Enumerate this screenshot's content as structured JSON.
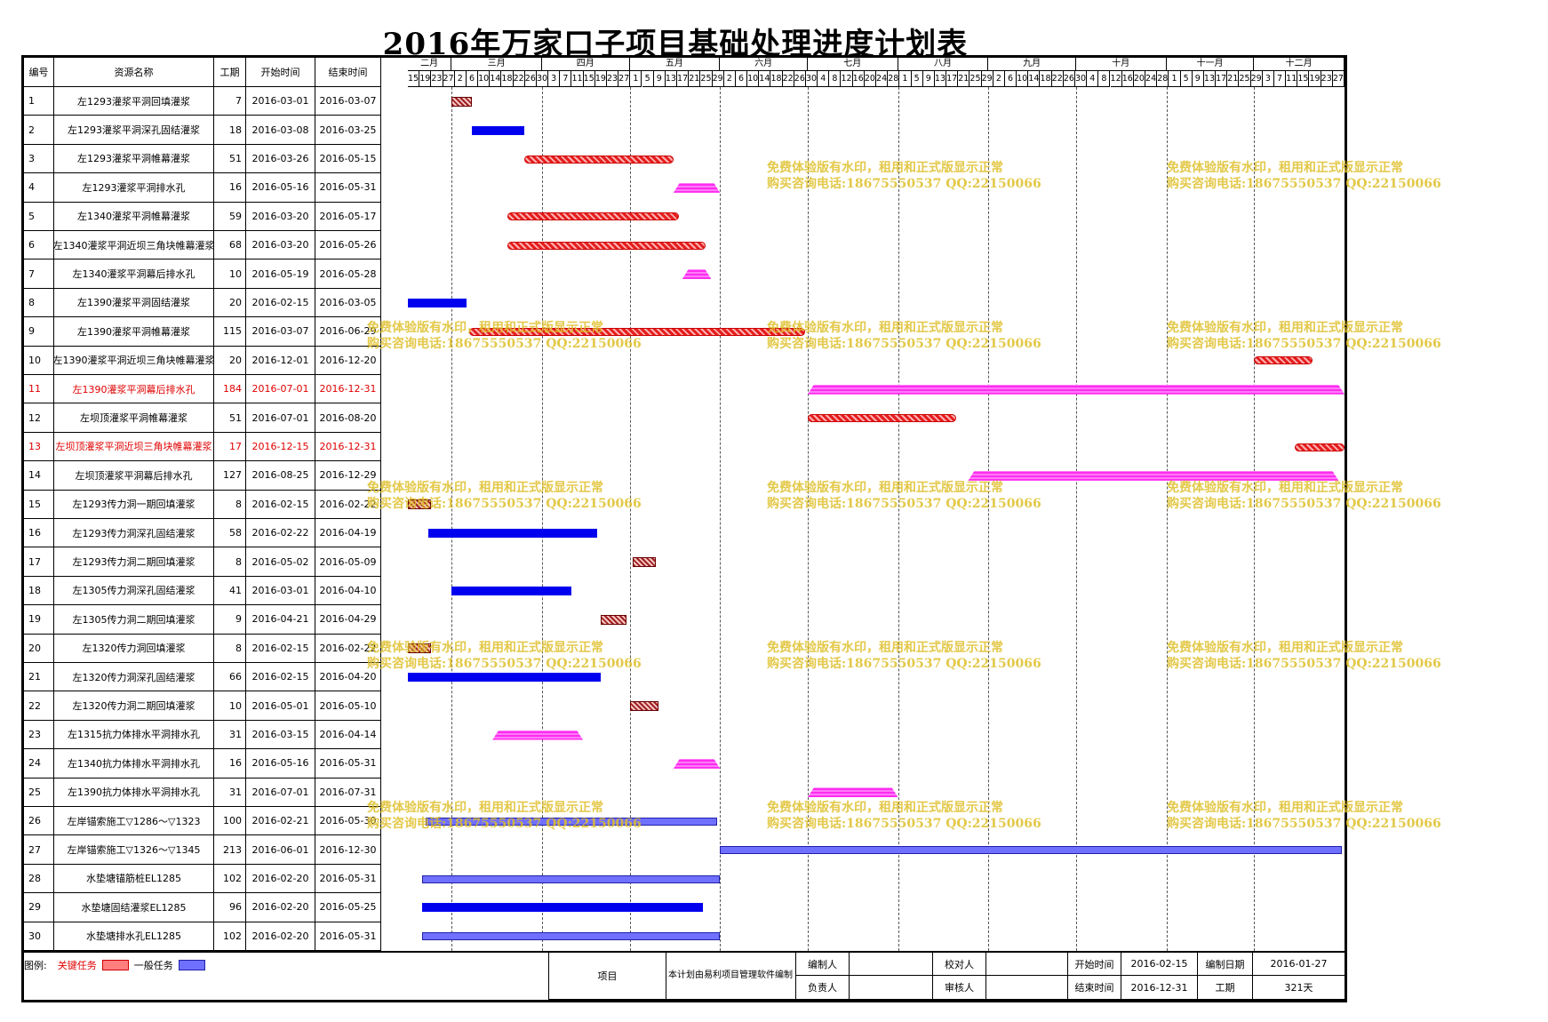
{
  "title": "2016年万家口子项目基础处理进度计划表",
  "headers": {
    "id": "编号",
    "name": "资源名称",
    "dur": "工期",
    "start": "开始时间",
    "end": "结束时间"
  },
  "months": [
    "二月",
    "三月",
    "四月",
    "五月",
    "六月",
    "七月",
    "八月",
    "九月",
    "十月",
    "十一月",
    "十二月"
  ],
  "day_labels": [
    "15",
    "19",
    "23",
    "27",
    "2",
    "6",
    "10",
    "14",
    "18",
    "22",
    "26",
    "30",
    "3",
    "7",
    "11",
    "15",
    "19",
    "23",
    "27",
    "1",
    "5",
    "9",
    "13",
    "17",
    "21",
    "25",
    "29",
    "2",
    "6",
    "10",
    "14",
    "18",
    "22",
    "26",
    "30",
    "4",
    "8",
    "12",
    "16",
    "20",
    "24",
    "28",
    "1",
    "5",
    "9",
    "13",
    "17",
    "21",
    "25",
    "29",
    "2",
    "6",
    "10",
    "14",
    "18",
    "22",
    "26",
    "30",
    "4",
    "8",
    "12",
    "16",
    "20",
    "24",
    "28",
    "1",
    "5",
    "9",
    "13",
    "17",
    "21",
    "25",
    "29",
    "3",
    "7",
    "11",
    "15",
    "19",
    "23",
    "27"
  ],
  "rows": [
    {
      "id": "1",
      "name": "左1293灌浆平洞回填灌浆",
      "dur": "7",
      "start": "2016-03-01",
      "end": "2016-03-07",
      "style": "brown",
      "critical": false
    },
    {
      "id": "2",
      "name": "左1293灌浆平洞深孔固结灌浆",
      "dur": "18",
      "start": "2016-03-08",
      "end": "2016-03-25",
      "style": "normal",
      "critical": false
    },
    {
      "id": "3",
      "name": "左1293灌浆平洞帷幕灌浆",
      "dur": "51",
      "start": "2016-03-26",
      "end": "2016-05-15",
      "style": "critical",
      "critical": false
    },
    {
      "id": "4",
      "name": "左1293灌浆平洞排水孔",
      "dur": "16",
      "start": "2016-05-16",
      "end": "2016-05-31",
      "style": "pink",
      "critical": false
    },
    {
      "id": "5",
      "name": "左1340灌浆平洞帷幕灌浆",
      "dur": "59",
      "start": "2016-03-20",
      "end": "2016-05-17",
      "style": "critical",
      "critical": false
    },
    {
      "id": "6",
      "name": "左1340灌浆平洞近坝三角块帷幕灌浆",
      "dur": "68",
      "start": "2016-03-20",
      "end": "2016-05-26",
      "style": "critical",
      "critical": false
    },
    {
      "id": "7",
      "name": "左1340灌浆平洞幕后排水孔",
      "dur": "10",
      "start": "2016-05-19",
      "end": "2016-05-28",
      "style": "pink",
      "critical": false
    },
    {
      "id": "8",
      "name": "左1390灌浆平洞固结灌浆",
      "dur": "20",
      "start": "2016-02-15",
      "end": "2016-03-05",
      "style": "normal",
      "critical": false
    },
    {
      "id": "9",
      "name": "左1390灌浆平洞帷幕灌浆",
      "dur": "115",
      "start": "2016-03-07",
      "end": "2016-06-29",
      "style": "critical",
      "critical": false
    },
    {
      "id": "10",
      "name": "左1390灌浆平洞近坝三角块帷幕灌浆",
      "dur": "20",
      "start": "2016-12-01",
      "end": "2016-12-20",
      "style": "critical",
      "critical": false
    },
    {
      "id": "11",
      "name": "左1390灌浆平洞幕后排水孔",
      "dur": "184",
      "start": "2016-07-01",
      "end": "2016-12-31",
      "style": "pink",
      "critical": true
    },
    {
      "id": "12",
      "name": "左坝顶灌浆平洞帷幕灌浆",
      "dur": "51",
      "start": "2016-07-01",
      "end": "2016-08-20",
      "style": "critical",
      "critical": false
    },
    {
      "id": "13",
      "name": "左坝顶灌浆平洞近坝三角块帷幕灌浆",
      "dur": "17",
      "start": "2016-12-15",
      "end": "2016-12-31",
      "style": "critical",
      "critical": true
    },
    {
      "id": "14",
      "name": "左坝顶灌浆平洞幕后排水孔",
      "dur": "127",
      "start": "2016-08-25",
      "end": "2016-12-29",
      "style": "pink",
      "critical": false
    },
    {
      "id": "15",
      "name": "左1293传力洞一期回填灌浆",
      "dur": "8",
      "start": "2016-02-15",
      "end": "2016-02-22",
      "style": "brown",
      "critical": false
    },
    {
      "id": "16",
      "name": "左1293传力洞深孔固结灌浆",
      "dur": "58",
      "start": "2016-02-22",
      "end": "2016-04-19",
      "style": "normal",
      "critical": false
    },
    {
      "id": "17",
      "name": "左1293传力洞二期回填灌浆",
      "dur": "8",
      "start": "2016-05-02",
      "end": "2016-05-09",
      "style": "brown",
      "critical": false
    },
    {
      "id": "18",
      "name": "左1305传力洞深孔固结灌浆",
      "dur": "41",
      "start": "2016-03-01",
      "end": "2016-04-10",
      "style": "normal",
      "critical": false
    },
    {
      "id": "19",
      "name": "左1305传力洞二期回填灌浆",
      "dur": "9",
      "start": "2016-04-21",
      "end": "2016-04-29",
      "style": "brown",
      "critical": false
    },
    {
      "id": "20",
      "name": "左1320传力洞回填灌浆",
      "dur": "8",
      "start": "2016-02-15",
      "end": "2016-02-22",
      "style": "brown",
      "critical": false
    },
    {
      "id": "21",
      "name": "左1320传力洞深孔固结灌浆",
      "dur": "66",
      "start": "2016-02-15",
      "end": "2016-04-20",
      "style": "normal",
      "critical": false
    },
    {
      "id": "22",
      "name": "左1320传力洞二期回填灌浆",
      "dur": "10",
      "start": "2016-05-01",
      "end": "2016-05-10",
      "style": "brown",
      "critical": false
    },
    {
      "id": "23",
      "name": "左1315抗力体排水平洞排水孔",
      "dur": "31",
      "start": "2016-03-15",
      "end": "2016-04-14",
      "style": "pink",
      "critical": false
    },
    {
      "id": "24",
      "name": "左1340抗力体排水平洞排水孔",
      "dur": "16",
      "start": "2016-05-16",
      "end": "2016-05-31",
      "style": "pink",
      "critical": false
    },
    {
      "id": "25",
      "name": "左1390抗力体排水平洞排水孔",
      "dur": "31",
      "start": "2016-07-01",
      "end": "2016-07-31",
      "style": "pink",
      "critical": false
    },
    {
      "id": "26",
      "name": "左岸锚索施工▽1286～▽1323",
      "dur": "100",
      "start": "2016-02-21",
      "end": "2016-05-30",
      "style": "lavender",
      "critical": false
    },
    {
      "id": "27",
      "name": "左岸锚索施工▽1326～▽1345",
      "dur": "213",
      "start": "2016-06-01",
      "end": "2016-12-30",
      "style": "lavender",
      "critical": false
    },
    {
      "id": "28",
      "name": "水垫塘锚筋桩EL1285",
      "dur": "102",
      "start": "2016-02-20",
      "end": "2016-05-31",
      "style": "lavender",
      "critical": false
    },
    {
      "id": "29",
      "name": "水垫塘固结灌浆EL1285",
      "dur": "96",
      "start": "2016-02-20",
      "end": "2016-05-25",
      "style": "normal",
      "critical": false
    },
    {
      "id": "30",
      "name": "水垫塘排水孔EL1285",
      "dur": "102",
      "start": "2016-02-20",
      "end": "2016-05-31",
      "style": "lavender",
      "critical": false
    }
  ],
  "watermark": {
    "line1": "免费体验版有水印，租用和正式版显示正常",
    "line2": "购买咨询电话:18675550537 QQ:22150066"
  },
  "footer": {
    "legend_label": "图例:",
    "legend_critical": "关键任务",
    "legend_normal": "一般任务",
    "project_label": "项目",
    "software_note": "本计划由易利项目管理软件编制",
    "compiler_label": "编制人",
    "compiler_value": "",
    "checker_label": "校对人",
    "checker_value": "",
    "start_label": "开始时间",
    "start_value": "2016-02-15",
    "compile_date_label": "编制日期",
    "compile_date_value": "2016-01-27",
    "owner_label": "负责人",
    "owner_value": "",
    "reviewer_label": "审核人",
    "reviewer_value": "",
    "end_label": "结束时间",
    "end_value": "2016-12-31",
    "duration_label": "工期",
    "duration_value": "321天"
  },
  "colors": {
    "critical": "#e41e1e",
    "normal": "#0000ee",
    "pink": "#ff2cf0",
    "brown": "#a02020",
    "lavender": "#7070ff",
    "watermark": "#debe28",
    "red_text": "#e00000"
  }
}
